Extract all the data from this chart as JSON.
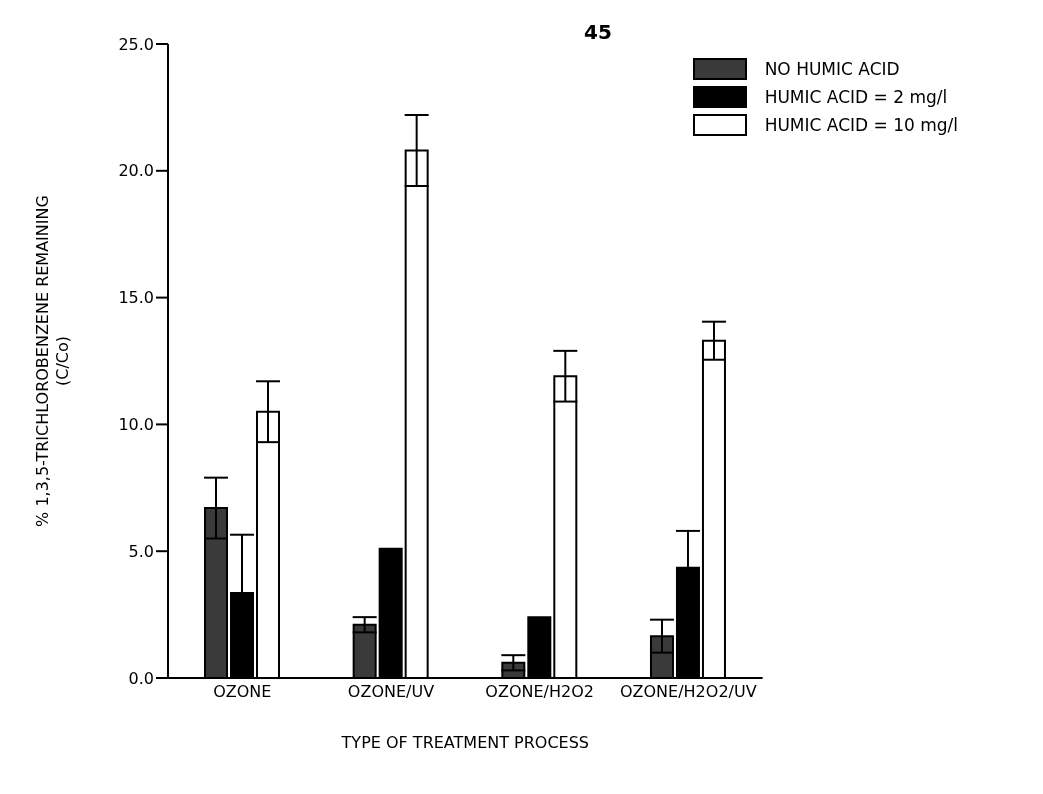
{
  "chart_data": {
    "type": "bar",
    "title": "45",
    "xlabel": "TYPE OF TREATMENT PROCESS",
    "ylabel": "% 1,3,5-TRICHLOROBENZENE REMAINING\n(C/Co)",
    "categories": [
      "OZONE",
      "OZONE/UV",
      "OZONE/H2O2",
      "OZONE/H2O2/UV"
    ],
    "series": [
      {
        "name": "NO HUMIC ACID",
        "color": "#3a3a3a",
        "values": [
          6.7,
          2.1,
          0.6,
          1.65
        ],
        "errors": [
          1.2,
          0.3,
          0.3,
          0.65
        ]
      },
      {
        "name": "HUMIC ACID = 2 mg/l",
        "color": "#000000",
        "values": [
          3.35,
          5.1,
          2.4,
          4.35
        ],
        "errors": [
          2.3,
          null,
          null,
          1.45
        ]
      },
      {
        "name": "HUMIC ACID = 10 mg/l",
        "color": "#ffffff",
        "values": [
          10.5,
          20.8,
          11.9,
          13.3
        ],
        "errors": [
          1.2,
          1.4,
          1.0,
          0.75
        ]
      }
    ],
    "ylim": [
      0,
      25
    ],
    "yticks": [
      {
        "value": 0,
        "label": "0.0"
      },
      {
        "value": 5,
        "label": "5.0"
      },
      {
        "value": 10,
        "label": "10.0"
      },
      {
        "value": 15,
        "label": "15.0"
      },
      {
        "value": 20,
        "label": "20.0"
      },
      {
        "value": 25,
        "label": "25.0"
      }
    ],
    "grid": false,
    "legend": "top right"
  }
}
